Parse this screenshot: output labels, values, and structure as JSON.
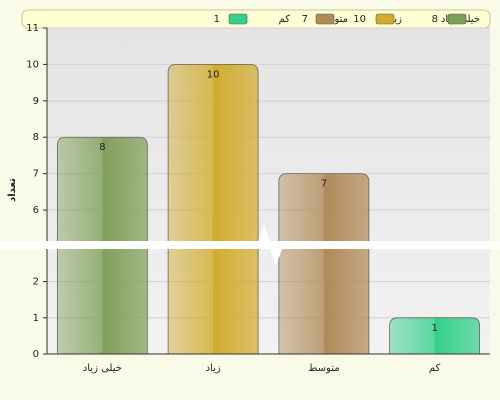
{
  "chart_data": {
    "type": "bar",
    "y_label": "تعداد",
    "categories": [
      "خیلی زیاد",
      "زیاد",
      "متوسط",
      "کم"
    ],
    "values": [
      8,
      10,
      7,
      1
    ],
    "colors": [
      "#7f9f5a",
      "#d2ab2c",
      "#b08a58",
      "#34d08c"
    ],
    "ylim": [
      0,
      11
    ],
    "y_break": [
      2.9,
      5.15
    ],
    "yticks": [
      0,
      1,
      2,
      6,
      7,
      8,
      9,
      10,
      11
    ],
    "grid": true,
    "legend": "top"
  }
}
